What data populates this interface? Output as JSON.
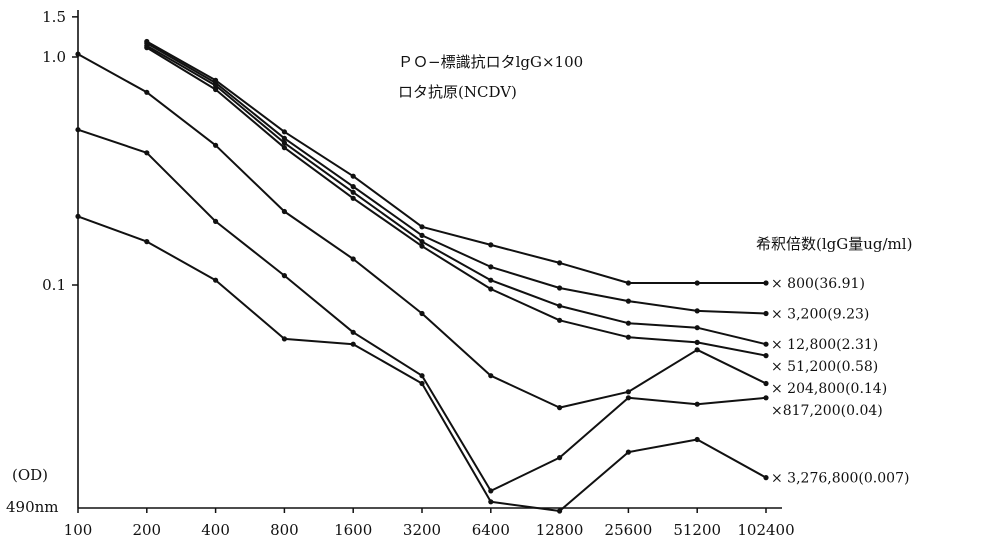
{
  "chart_data": {
    "type": "line",
    "title": [
      "ＰＯ−標識抗ロタlgG×100",
      "ロタ抗原(NCDV)"
    ],
    "ylabel": [
      "(OD)",
      "490nm"
    ],
    "xlabel": "",
    "y_scale": "log",
    "ylim": [
      0.01,
      1.6
    ],
    "y_ticks": [
      {
        "value": 1.5,
        "label": "1.5"
      },
      {
        "value": 1.0,
        "label": "1.0"
      },
      {
        "value": 0.1,
        "label": "0.1"
      }
    ],
    "x_scale": "log2",
    "x_ticks": [
      "100",
      "200",
      "400",
      "800",
      "1600",
      "3200",
      "6400",
      "12800",
      "25600",
      "51200",
      "102400"
    ],
    "legend_title": "希釈倍数(lgG量ug/ml)",
    "series": [
      {
        "name": "× 800(36.91)",
        "x": [
          200,
          400,
          800,
          1600,
          3200,
          6400,
          12800,
          25600,
          51200,
          102400
        ],
        "y": [
          1.17,
          0.79,
          0.47,
          0.3,
          0.18,
          0.15,
          0.125,
          0.102,
          0.102,
          0.102
        ]
      },
      {
        "name": "× 3,200(9.23)",
        "x": [
          200,
          400,
          800,
          1600,
          3200,
          6400,
          12800,
          25600,
          51200,
          102400
        ],
        "y": [
          1.15,
          0.77,
          0.44,
          0.27,
          0.165,
          0.12,
          0.097,
          0.085,
          0.077,
          0.075
        ]
      },
      {
        "name": "× 12,800(2.31)",
        "x": [
          200,
          400,
          800,
          1600,
          3200,
          6400,
          12800,
          25600,
          51200,
          102400
        ],
        "y": [
          1.12,
          0.75,
          0.42,
          0.255,
          0.155,
          0.105,
          0.081,
          0.068,
          0.065,
          0.055
        ]
      },
      {
        "name": "× 51,200(0.58)",
        "x": [
          200,
          400,
          800,
          1600,
          3200,
          6400,
          12800,
          25600,
          51200,
          102400
        ],
        "y": [
          1.1,
          0.72,
          0.4,
          0.24,
          0.148,
          0.096,
          0.07,
          0.059,
          0.056,
          0.049
        ]
      },
      {
        "name": "× 204,800(0.14)",
        "x": [
          100,
          200,
          400,
          800,
          1600,
          3200,
          6400,
          12800,
          25600,
          51200,
          102400
        ],
        "y": [
          1.03,
          0.7,
          0.41,
          0.21,
          0.13,
          0.075,
          0.04,
          0.029,
          0.034,
          0.052,
          0.037
        ]
      },
      {
        "name": "×817,200(0.04)",
        "x": [
          100,
          200,
          400,
          800,
          1600,
          3200,
          6400,
          12800,
          25600,
          51200,
          102400
        ],
        "y": [
          0.48,
          0.38,
          0.19,
          0.11,
          0.062,
          0.04,
          0.0125,
          0.0175,
          0.032,
          0.03,
          0.032
        ]
      },
      {
        "name": "× 3,276,800(0.007)",
        "x": [
          100,
          200,
          400,
          800,
          1600,
          3200,
          6400,
          12800,
          25600,
          51200,
          102400
        ],
        "y": [
          0.2,
          0.155,
          0.105,
          0.058,
          0.055,
          0.037,
          0.0112,
          0.0102,
          0.0185,
          0.021,
          0.0143
        ]
      }
    ]
  }
}
